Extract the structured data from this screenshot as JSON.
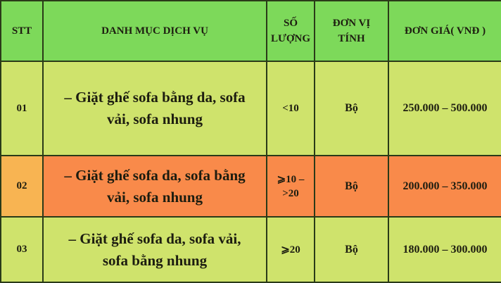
{
  "colors": {
    "header": "#7dd95a",
    "row_light": "#cfe36c",
    "row_highlight": "#f98a4a",
    "stt_highlight": "#f8b452"
  },
  "headers": {
    "stt": "STT",
    "service": "DANH MỤC DỊCH VỤ",
    "quantity": "SỐ LƯỢNG",
    "unit": "ĐƠN VỊ TÍNH",
    "price": "ĐƠN GIÁ( VNĐ )"
  },
  "rows": [
    {
      "stt": "01",
      "service": "– Giặt ghế sofa bằng da, sofa vải, sofa nhung",
      "quantity": "<10",
      "unit": "Bộ",
      "price": "250.000 – 500.000"
    },
    {
      "stt": "02",
      "service": "– Giặt ghế sofa da, sofa bằng vải, sofa nhung",
      "quantity": "⩾10 – >20",
      "unit": "Bộ",
      "price": "200.000 – 350.000"
    },
    {
      "stt": "03",
      "service": "– Giặt ghế sofa da, sofa vải, sofa bằng nhung",
      "quantity": "⩾20",
      "unit": "Bộ",
      "price": "180.000 – 300.000"
    }
  ]
}
